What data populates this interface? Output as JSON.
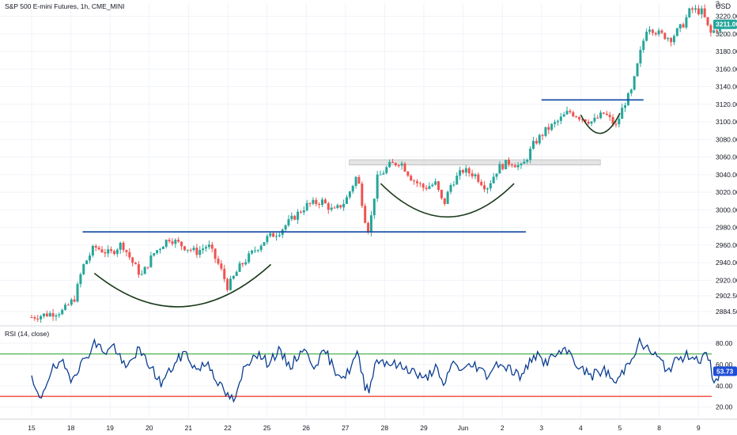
{
  "header": {
    "title": "S&P 500 E-mini Futures, 1h, CME_MINI",
    "currency": "USD",
    "top_tick": "3"
  },
  "rsi_panel": {
    "label": "RSI (14, close)",
    "last_value": "53.73"
  },
  "colors": {
    "up": "#26a69a",
    "down": "#ef5350",
    "rsi_line": "#0b3d91",
    "overbought": "#4caf50",
    "oversold": "#f44336",
    "trendline": "#0d47a1",
    "cup": "#1b3a1b",
    "zone": "#e0e0e0",
    "price_badge": "#26a69a",
    "rsi_badge": "#1e4dd8"
  },
  "chart_data": [
    {
      "type": "candlestick",
      "title": "S&P 500 E-mini Futures, 1h, CME_MINI",
      "ylim": [
        2870,
        3235
      ],
      "y_ticks": [
        "2884.50",
        "2902.50",
        "2920.00",
        "2940.00",
        "2960.00",
        "2980.00",
        "3000.00",
        "3020.00",
        "3040.00",
        "3060.00",
        "3080.00",
        "3100.00",
        "3120.00",
        "3140.00",
        "3160.00",
        "3180.00",
        "3200.00",
        "3220.00"
      ],
      "x_ticks": [
        "15",
        "18",
        "19",
        "20",
        "21",
        "22",
        "25",
        "26",
        "27",
        "28",
        "29",
        "Jun",
        "2",
        "3",
        "4",
        "5",
        "8",
        "9"
      ],
      "last_price": "3211.00",
      "close_path": [
        {
          "d": 0.0,
          "v": 2878
        },
        {
          "d": 0.8,
          "v": 2885
        },
        {
          "d": 1.1,
          "v": 2900
        },
        {
          "d": 1.3,
          "v": 2935
        },
        {
          "d": 1.6,
          "v": 2958
        },
        {
          "d": 2.0,
          "v": 2950
        },
        {
          "d": 2.3,
          "v": 2962
        },
        {
          "d": 2.6,
          "v": 2938
        },
        {
          "d": 2.8,
          "v": 2925
        },
        {
          "d": 3.1,
          "v": 2950
        },
        {
          "d": 3.5,
          "v": 2968
        },
        {
          "d": 3.9,
          "v": 2958
        },
        {
          "d": 4.2,
          "v": 2952
        },
        {
          "d": 4.5,
          "v": 2960
        },
        {
          "d": 4.8,
          "v": 2935
        },
        {
          "d": 5.0,
          "v": 2912
        },
        {
          "d": 5.3,
          "v": 2935
        },
        {
          "d": 5.7,
          "v": 2955
        },
        {
          "d": 6.0,
          "v": 2968
        },
        {
          "d": 6.3,
          "v": 2975
        },
        {
          "d": 6.6,
          "v": 2988
        },
        {
          "d": 7.0,
          "v": 3005
        },
        {
          "d": 7.4,
          "v": 3010
        },
        {
          "d": 7.7,
          "v": 2998
        },
        {
          "d": 8.0,
          "v": 3010
        },
        {
          "d": 8.3,
          "v": 3040
        },
        {
          "d": 8.5,
          "v": 2990
        },
        {
          "d": 8.6,
          "v": 2975
        },
        {
          "d": 8.8,
          "v": 3035
        },
        {
          "d": 9.1,
          "v": 3050
        },
        {
          "d": 9.4,
          "v": 3055
        },
        {
          "d": 9.7,
          "v": 3035
        },
        {
          "d": 10.0,
          "v": 3025
        },
        {
          "d": 10.3,
          "v": 3030
        },
        {
          "d": 10.5,
          "v": 3005
        },
        {
          "d": 10.7,
          "v": 3030
        },
        {
          "d": 11.0,
          "v": 3045
        },
        {
          "d": 11.3,
          "v": 3040
        },
        {
          "d": 11.6,
          "v": 3025
        },
        {
          "d": 11.9,
          "v": 3048
        },
        {
          "d": 12.2,
          "v": 3055
        },
        {
          "d": 12.5,
          "v": 3048
        },
        {
          "d": 12.8,
          "v": 3075
        },
        {
          "d": 13.1,
          "v": 3090
        },
        {
          "d": 13.4,
          "v": 3100
        },
        {
          "d": 13.7,
          "v": 3112
        },
        {
          "d": 14.0,
          "v": 3105
        },
        {
          "d": 14.3,
          "v": 3100
        },
        {
          "d": 14.6,
          "v": 3110
        },
        {
          "d": 14.9,
          "v": 3095
        },
        {
          "d": 15.1,
          "v": 3120
        },
        {
          "d": 15.3,
          "v": 3135
        },
        {
          "d": 15.5,
          "v": 3175
        },
        {
          "d": 15.7,
          "v": 3210
        },
        {
          "d": 16.0,
          "v": 3200
        },
        {
          "d": 16.3,
          "v": 3195
        },
        {
          "d": 16.6,
          "v": 3210
        },
        {
          "d": 16.8,
          "v": 3228
        },
        {
          "d": 17.1,
          "v": 3225
        },
        {
          "d": 17.3,
          "v": 3200
        },
        {
          "d": 17.6,
          "v": 3211
        }
      ],
      "annotations": {
        "resistance_lines": [
          {
            "d0": 1.3,
            "d1": 12.6,
            "v": 2975
          },
          {
            "d0": 13.0,
            "d1": 15.6,
            "v": 3125
          }
        ],
        "resistance_zone": {
          "d0": 8.1,
          "d1": 14.5,
          "v0": 3051,
          "v1": 3057
        },
        "cup_curves": [
          {
            "d0": 1.6,
            "d1": 6.1,
            "v_start": 2928,
            "v_bottom": 2890,
            "v_end": 2938
          },
          {
            "d0": 8.9,
            "d1": 12.3,
            "v_start": 3030,
            "v_bottom": 2992,
            "v_end": 3030
          },
          {
            "d0": 14.0,
            "d1": 15.0,
            "v_start": 3108,
            "v_bottom": 3087,
            "v_end": 3110
          }
        ]
      }
    },
    {
      "type": "line",
      "title": "RSI (14, close)",
      "ylim": [
        10,
        92
      ],
      "y_ticks": [
        "20.00",
        "40.00",
        "60.00",
        "80.00"
      ],
      "levels": {
        "overbought": 70,
        "oversold": 30
      },
      "last_value": 53.73,
      "rsi_path": [
        {
          "d": 0.0,
          "v": 45
        },
        {
          "d": 0.2,
          "v": 26
        },
        {
          "d": 0.5,
          "v": 55
        },
        {
          "d": 0.8,
          "v": 60
        },
        {
          "d": 1.0,
          "v": 48
        },
        {
          "d": 1.3,
          "v": 62
        },
        {
          "d": 1.6,
          "v": 80
        },
        {
          "d": 1.9,
          "v": 72
        },
        {
          "d": 2.1,
          "v": 78
        },
        {
          "d": 2.4,
          "v": 55
        },
        {
          "d": 2.7,
          "v": 74
        },
        {
          "d": 3.0,
          "v": 60
        },
        {
          "d": 3.3,
          "v": 42
        },
        {
          "d": 3.6,
          "v": 58
        },
        {
          "d": 3.9,
          "v": 72
        },
        {
          "d": 4.2,
          "v": 55
        },
        {
          "d": 4.5,
          "v": 62
        },
        {
          "d": 4.8,
          "v": 40
        },
        {
          "d": 5.0,
          "v": 30
        },
        {
          "d": 5.2,
          "v": 26
        },
        {
          "d": 5.4,
          "v": 55
        },
        {
          "d": 5.7,
          "v": 72
        },
        {
          "d": 6.0,
          "v": 62
        },
        {
          "d": 6.3,
          "v": 72
        },
        {
          "d": 6.6,
          "v": 58
        },
        {
          "d": 6.9,
          "v": 75
        },
        {
          "d": 7.2,
          "v": 60
        },
        {
          "d": 7.5,
          "v": 72
        },
        {
          "d": 7.7,
          "v": 56
        },
        {
          "d": 8.0,
          "v": 48
        },
        {
          "d": 8.3,
          "v": 70
        },
        {
          "d": 8.5,
          "v": 40
        },
        {
          "d": 8.6,
          "v": 38
        },
        {
          "d": 8.8,
          "v": 65
        },
        {
          "d": 9.1,
          "v": 62
        },
        {
          "d": 9.4,
          "v": 58
        },
        {
          "d": 9.7,
          "v": 55
        },
        {
          "d": 10.0,
          "v": 45
        },
        {
          "d": 10.3,
          "v": 58
        },
        {
          "d": 10.5,
          "v": 37
        },
        {
          "d": 10.7,
          "v": 62
        },
        {
          "d": 11.0,
          "v": 55
        },
        {
          "d": 11.3,
          "v": 60
        },
        {
          "d": 11.6,
          "v": 50
        },
        {
          "d": 11.9,
          "v": 62
        },
        {
          "d": 12.2,
          "v": 56
        },
        {
          "d": 12.5,
          "v": 48
        },
        {
          "d": 12.8,
          "v": 70
        },
        {
          "d": 13.1,
          "v": 62
        },
        {
          "d": 13.4,
          "v": 70
        },
        {
          "d": 13.7,
          "v": 72
        },
        {
          "d": 14.0,
          "v": 55
        },
        {
          "d": 14.3,
          "v": 50
        },
        {
          "d": 14.6,
          "v": 55
        },
        {
          "d": 14.9,
          "v": 42
        },
        {
          "d": 15.1,
          "v": 55
        },
        {
          "d": 15.3,
          "v": 68
        },
        {
          "d": 15.5,
          "v": 80
        },
        {
          "d": 15.7,
          "v": 75
        },
        {
          "d": 16.0,
          "v": 65
        },
        {
          "d": 16.2,
          "v": 55
        },
        {
          "d": 16.5,
          "v": 65
        },
        {
          "d": 16.8,
          "v": 70
        },
        {
          "d": 17.0,
          "v": 65
        },
        {
          "d": 17.2,
          "v": 68
        },
        {
          "d": 17.3,
          "v": 60
        },
        {
          "d": 17.4,
          "v": 42
        },
        {
          "d": 17.6,
          "v": 53.73
        }
      ]
    }
  ]
}
